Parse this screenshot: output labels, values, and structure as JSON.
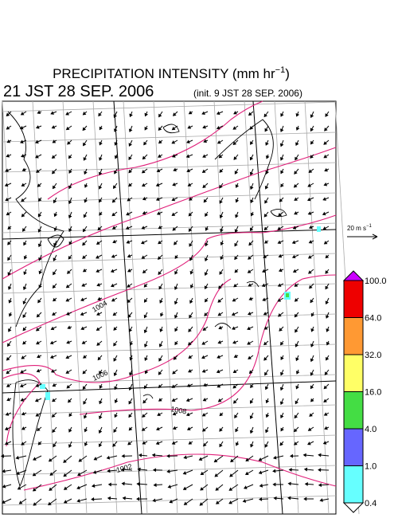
{
  "header": {
    "title_main": "PRECIPITATION INTENSITY (mm hr",
    "title_sup": "−1",
    "title_end": ")",
    "valid_time": "21 JST 28 SEP. 2006",
    "init_time": "(init. 9 JST 28 SEP. 2006)"
  },
  "wind_legend": {
    "label_main": "20 m s",
    "label_sup": "−1"
  },
  "isobar_labels": [
    "1004",
    "1006",
    "1008",
    "1002"
  ],
  "colorbar": {
    "levels": [
      {
        "value": 100,
        "label": "100.0"
      },
      {
        "value": 64,
        "label": "64.0"
      },
      {
        "value": 32,
        "label": "32.0"
      },
      {
        "value": 16,
        "label": "16.0"
      },
      {
        "value": 4,
        "label": "4.0"
      },
      {
        "value": 1,
        "label": "1.0"
      },
      {
        "value": 0.4,
        "label": "0.4"
      }
    ],
    "colors": [
      "#ee0000",
      "#ff9933",
      "#ffff66",
      "#44dd44",
      "#6666ff",
      "#66ffff"
    ],
    "over_color": "#cc00ff",
    "under_color": "#ffffff"
  }
}
